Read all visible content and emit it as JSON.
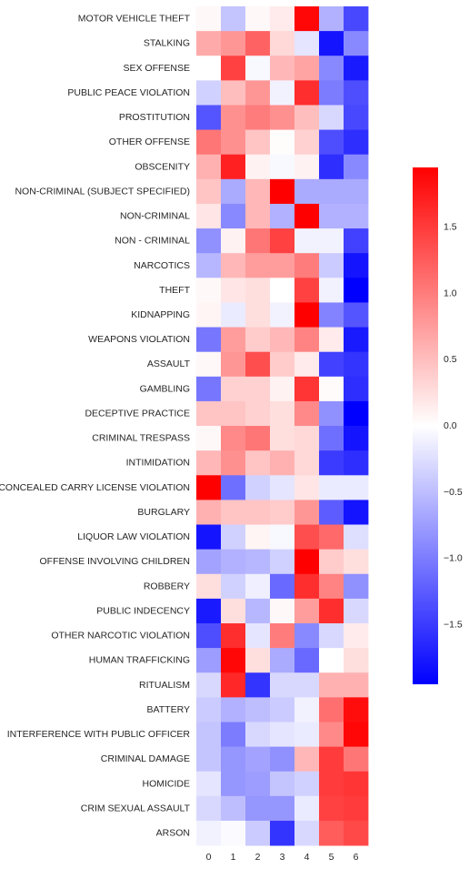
{
  "chart_data": {
    "type": "heatmap",
    "title": "",
    "xlabel": "",
    "ylabel": "",
    "x_categories": [
      "0",
      "1",
      "2",
      "3",
      "4",
      "5",
      "6"
    ],
    "y_categories": [
      "MOTOR VEHICLE THEFT",
      "STALKING",
      "SEX OFFENSE",
      "PUBLIC PEACE VIOLATION",
      "PROSTITUTION",
      "OTHER OFFENSE",
      "OBSCENITY",
      "NON-CRIMINAL (SUBJECT SPECIFIED)",
      "NON-CRIMINAL",
      "NON - CRIMINAL",
      "NARCOTICS",
      "THEFT",
      "KIDNAPPING",
      "WEAPONS VIOLATION",
      "ASSAULT",
      "GAMBLING",
      "DECEPTIVE PRACTICE",
      "CRIMINAL TRESPASS",
      "INTIMIDATION",
      "CONCEALED CARRY LICENSE VIOLATION",
      "BURGLARY",
      "LIQUOR LAW VIOLATION",
      "OFFENSE INVOLVING CHILDREN",
      "ROBBERY",
      "PUBLIC INDECENCY",
      "OTHER NARCOTIC VIOLATION",
      "HUMAN TRAFFICKING",
      "RITUALISM",
      "BATTERY",
      "INTERFERENCE WITH PUBLIC OFFICER",
      "CRIMINAL DAMAGE",
      "HOMICIDE",
      "CRIM SEXUAL ASSAULT",
      "ARSON"
    ],
    "values": [
      [
        0.05,
        -0.45,
        0.05,
        0.15,
        1.9,
        -0.6,
        -1.4
      ],
      [
        0.65,
        0.8,
        1.2,
        0.3,
        -0.2,
        -1.8,
        -0.9
      ],
      [
        0.0,
        1.45,
        -0.05,
        0.55,
        0.7,
        -0.9,
        -1.75
      ],
      [
        -0.35,
        0.5,
        0.8,
        -0.1,
        1.6,
        -1.0,
        -1.35
      ],
      [
        -1.3,
        0.85,
        1.0,
        0.85,
        0.5,
        -0.3,
        -1.4
      ],
      [
        1.05,
        0.85,
        0.45,
        0.02,
        0.35,
        -1.35,
        -1.6
      ],
      [
        0.6,
        1.7,
        0.1,
        -0.05,
        0.1,
        -1.6,
        -0.9
      ],
      [
        0.45,
        -0.65,
        0.55,
        1.95,
        -0.65,
        -0.65,
        -0.65
      ],
      [
        0.2,
        -0.9,
        0.55,
        -0.6,
        1.95,
        -0.6,
        -0.6
      ],
      [
        -0.85,
        0.1,
        1.05,
        1.45,
        -0.1,
        -0.1,
        -1.45
      ],
      [
        -0.55,
        0.55,
        0.75,
        0.75,
        1.0,
        -0.4,
        -1.8
      ],
      [
        0.05,
        0.2,
        0.25,
        0.0,
        1.45,
        -0.1,
        -1.95
      ],
      [
        0.08,
        -0.15,
        0.25,
        -0.1,
        1.95,
        -0.95,
        -1.3
      ],
      [
        -1.05,
        0.75,
        0.4,
        0.55,
        0.95,
        0.15,
        -1.75
      ],
      [
        0.05,
        0.8,
        1.35,
        0.4,
        0.15,
        -1.45,
        -1.55
      ],
      [
        -1.05,
        0.35,
        0.35,
        0.1,
        1.55,
        0.03,
        -1.6
      ],
      [
        0.45,
        0.45,
        0.35,
        0.25,
        0.9,
        -0.85,
        -1.95
      ],
      [
        0.05,
        0.9,
        1.05,
        0.25,
        0.3,
        -1.1,
        -1.8
      ],
      [
        0.55,
        0.85,
        0.45,
        0.6,
        0.3,
        -1.5,
        -1.6
      ],
      [
        1.95,
        -1.1,
        -0.35,
        -0.2,
        0.2,
        -0.15,
        -0.15
      ],
      [
        0.6,
        0.45,
        0.45,
        0.4,
        0.8,
        -1.25,
        -1.8
      ],
      [
        -1.8,
        -0.35,
        0.08,
        -0.05,
        1.35,
        1.15,
        -0.25
      ],
      [
        -0.7,
        -0.6,
        -0.55,
        -0.35,
        1.95,
        0.4,
        0.25
      ],
      [
        0.25,
        -0.35,
        -0.12,
        -1.15,
        1.6,
        0.95,
        -0.85
      ],
      [
        -1.75,
        0.25,
        -0.55,
        0.05,
        0.75,
        1.6,
        -0.3
      ],
      [
        -1.35,
        1.6,
        -0.2,
        1.0,
        -0.9,
        -0.3,
        0.15
      ],
      [
        -0.75,
        1.9,
        0.25,
        -0.65,
        -1.15,
        0.0,
        0.25
      ],
      [
        -0.3,
        1.65,
        -1.55,
        -0.3,
        -0.3,
        0.6,
        0.6
      ],
      [
        -0.4,
        -0.6,
        -0.5,
        -0.4,
        -0.1,
        1.1,
        1.85
      ],
      [
        -0.45,
        -1.0,
        -0.3,
        -0.2,
        -0.15,
        0.9,
        1.9
      ],
      [
        -0.45,
        -0.8,
        -0.7,
        -0.85,
        0.55,
        1.5,
        1.05
      ],
      [
        -0.2,
        -0.8,
        -0.75,
        -0.45,
        -0.35,
        1.5,
        1.55
      ],
      [
        -0.3,
        -0.5,
        -0.8,
        -0.8,
        -0.15,
        1.45,
        1.5
      ],
      [
        -0.1,
        -0.03,
        -0.4,
        -1.55,
        -0.3,
        1.25,
        1.4
      ]
    ],
    "colormap": "bwr",
    "vmin": -1.95,
    "vmax": 1.95,
    "colorbar_ticks": [
      {
        "value": 1.5,
        "label": "1.5"
      },
      {
        "value": 1.0,
        "label": "1.0"
      },
      {
        "value": 0.5,
        "label": "0.5"
      },
      {
        "value": 0.0,
        "label": "0.0"
      },
      {
        "value": -0.5,
        "label": "−0.5"
      },
      {
        "value": -1.0,
        "label": "−1.0"
      },
      {
        "value": -1.5,
        "label": "−1.5"
      }
    ],
    "colors": {
      "low": "#0000ff",
      "mid": "#ffffff",
      "high": "#ff0000"
    }
  }
}
